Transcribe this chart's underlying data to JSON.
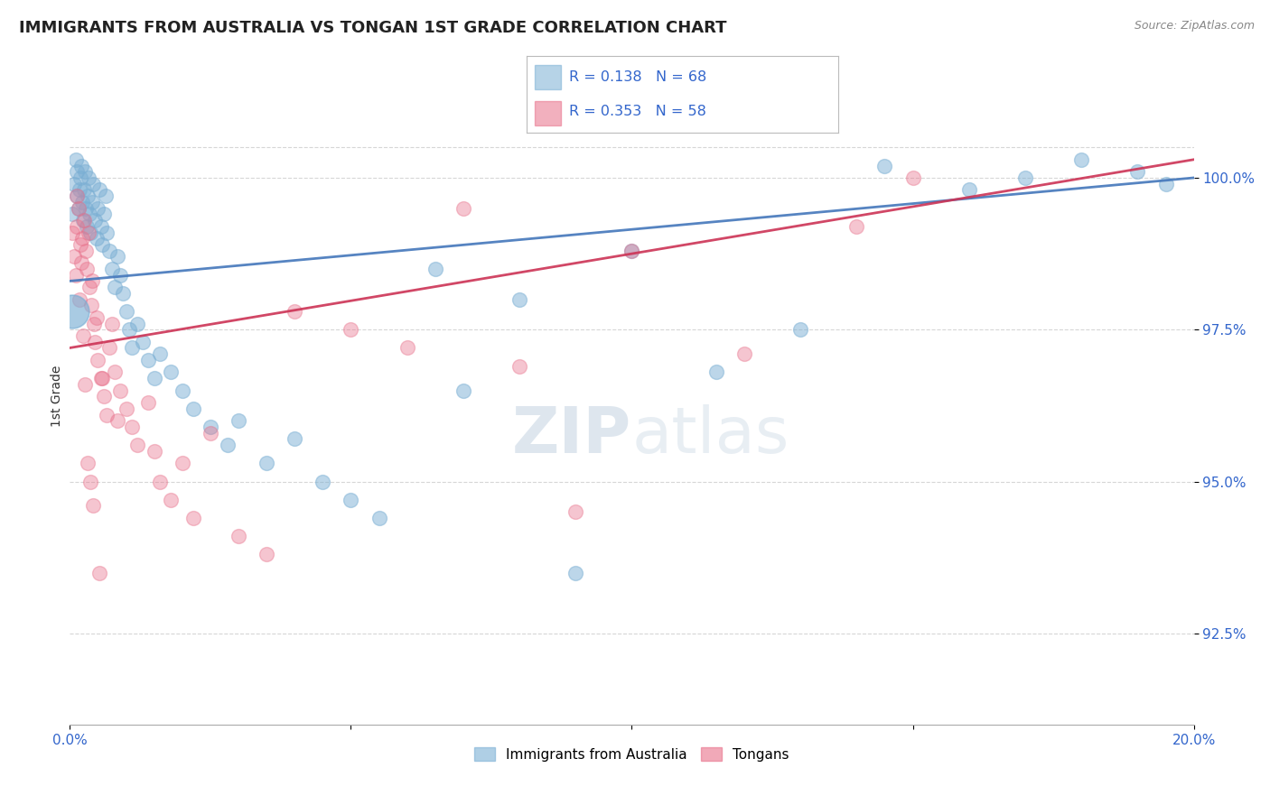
{
  "title": "IMMIGRANTS FROM AUSTRALIA VS TONGAN 1ST GRADE CORRELATION CHART",
  "source_text": "Source: ZipAtlas.com",
  "ylabel": "1st Grade",
  "xlim": [
    0.0,
    20.0
  ],
  "ylim": [
    91.0,
    101.8
  ],
  "yticks": [
    92.5,
    95.0,
    97.5,
    100.0
  ],
  "ytick_labels": [
    "92.5%",
    "95.0%",
    "97.5%",
    "100.0%"
  ],
  "xticks": [
    0.0,
    5.0,
    10.0,
    15.0,
    20.0
  ],
  "xtick_labels": [
    "0.0%",
    "",
    "",
    "",
    "20.0%"
  ],
  "blue_color": "#7BAFD4",
  "pink_color": "#E8708A",
  "blue_line_color": "#4477BB",
  "pink_line_color": "#CC3355",
  "R_blue": 0.138,
  "N_blue": 68,
  "R_pink": 0.353,
  "N_pink": 58,
  "legend_label_blue": "Immigrants from Australia",
  "legend_label_pink": "Tongans",
  "blue_x": [
    0.05,
    0.08,
    0.1,
    0.12,
    0.13,
    0.15,
    0.17,
    0.18,
    0.2,
    0.22,
    0.24,
    0.25,
    0.27,
    0.28,
    0.3,
    0.32,
    0.33,
    0.35,
    0.37,
    0.4,
    0.42,
    0.45,
    0.48,
    0.5,
    0.53,
    0.55,
    0.58,
    0.6,
    0.63,
    0.65,
    0.7,
    0.75,
    0.8,
    0.85,
    0.9,
    0.95,
    1.0,
    1.05,
    1.1,
    1.2,
    1.3,
    1.4,
    1.5,
    1.6,
    1.8,
    2.0,
    2.2,
    2.5,
    2.8,
    3.0,
    3.5,
    4.0,
    4.5,
    5.0,
    5.5,
    6.5,
    7.0,
    8.0,
    9.0,
    10.0,
    11.5,
    13.0,
    14.5,
    16.0,
    17.0,
    18.0,
    19.0,
    19.5
  ],
  "blue_y": [
    99.4,
    99.9,
    100.3,
    100.1,
    99.7,
    99.5,
    99.8,
    100.0,
    100.2,
    99.6,
    99.3,
    99.8,
    100.1,
    99.5,
    99.2,
    99.7,
    100.0,
    99.4,
    99.1,
    99.6,
    99.9,
    99.3,
    99.0,
    99.5,
    99.8,
    99.2,
    98.9,
    99.4,
    99.7,
    99.1,
    98.8,
    98.5,
    98.2,
    98.7,
    98.4,
    98.1,
    97.8,
    97.5,
    97.2,
    97.6,
    97.3,
    97.0,
    96.7,
    97.1,
    96.8,
    96.5,
    96.2,
    95.9,
    95.6,
    96.0,
    95.3,
    95.7,
    95.0,
    94.7,
    94.4,
    98.5,
    96.5,
    98.0,
    93.5,
    98.8,
    96.8,
    97.5,
    100.2,
    99.8,
    100.0,
    100.3,
    100.1,
    99.9
  ],
  "pink_x": [
    0.05,
    0.08,
    0.1,
    0.12,
    0.15,
    0.18,
    0.2,
    0.22,
    0.25,
    0.28,
    0.3,
    0.33,
    0.35,
    0.38,
    0.4,
    0.43,
    0.45,
    0.48,
    0.5,
    0.55,
    0.6,
    0.65,
    0.7,
    0.8,
    0.9,
    1.0,
    1.1,
    1.2,
    1.4,
    1.6,
    1.8,
    2.0,
    2.2,
    2.5,
    3.0,
    3.5,
    4.0,
    5.0,
    6.0,
    7.0,
    8.0,
    9.0,
    10.0,
    12.0,
    14.0,
    15.0,
    0.13,
    0.17,
    0.23,
    0.27,
    0.32,
    0.37,
    0.42,
    0.52,
    0.58,
    0.75,
    0.85,
    1.5
  ],
  "pink_y": [
    99.1,
    98.7,
    98.4,
    99.2,
    99.5,
    98.9,
    98.6,
    99.0,
    99.3,
    98.8,
    98.5,
    99.1,
    98.2,
    97.9,
    98.3,
    97.6,
    97.3,
    97.7,
    97.0,
    96.7,
    96.4,
    96.1,
    97.2,
    96.8,
    96.5,
    96.2,
    95.9,
    95.6,
    96.3,
    95.0,
    94.7,
    95.3,
    94.4,
    95.8,
    94.1,
    93.8,
    97.8,
    97.5,
    97.2,
    99.5,
    96.9,
    94.5,
    98.8,
    97.1,
    99.2,
    100.0,
    99.7,
    98.0,
    97.4,
    96.6,
    95.3,
    95.0,
    94.6,
    93.5,
    96.7,
    97.6,
    96.0,
    95.5
  ]
}
